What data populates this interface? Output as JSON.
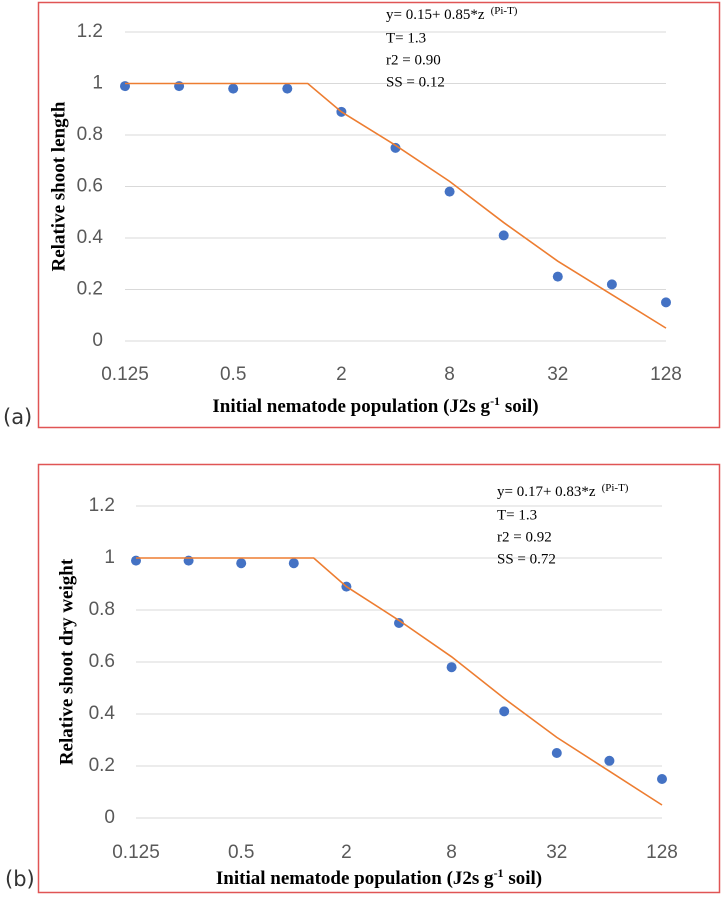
{
  "chart_data": [
    {
      "type": "scatter",
      "panel": "(a)",
      "ylabel": "Relative shoot length",
      "xlabel": [
        "Initial nematode population (J2s g",
        "-1",
        " soil)"
      ],
      "equation": [
        "y= 0.15+ 0.85*z",
        "(Pi-T)"
      ],
      "stats": [
        "T= 1.3",
        "r2 = 0.90",
        "SS = 0.12"
      ],
      "xscale": "log",
      "xlim": [
        0.125,
        128
      ],
      "xticks": [
        0.125,
        0.5,
        2,
        8,
        32,
        128
      ],
      "ylim": [
        0,
        1.2
      ],
      "yticks": [
        0,
        0.2,
        0.4,
        0.6,
        0.8,
        1,
        1.2
      ],
      "grid": true,
      "series": [
        {
          "style": "markers",
          "color": "#4472c4",
          "x": [
            0.125,
            0.25,
            0.5,
            1,
            2,
            4,
            8,
            16,
            32,
            64,
            128
          ],
          "values": [
            0.99,
            0.99,
            0.98,
            0.98,
            0.89,
            0.75,
            0.58,
            0.41,
            0.25,
            0.22,
            0.15
          ]
        },
        {
          "style": "line",
          "color": "#ed7d31",
          "x": [
            0.125,
            1.3,
            2,
            4,
            8,
            16,
            32,
            64,
            128
          ],
          "values": [
            1,
            1,
            0.89,
            0.76,
            0.62,
            0.46,
            0.31,
            0.18,
            0.05
          ]
        }
      ]
    },
    {
      "type": "scatter",
      "panel": "(b)",
      "ylabel": "Relative shoot dry weight",
      "xlabel": [
        "Initial nematode population (J2s g",
        "-1",
        " soil)"
      ],
      "equation": [
        "y= 0.17+ 0.83*z",
        "(Pi-T)"
      ],
      "stats": [
        "T= 1.3",
        "r2 = 0.92",
        "SS = 0.72"
      ],
      "xscale": "log",
      "xlim": [
        0.125,
        128
      ],
      "xticks": [
        0.125,
        0.5,
        2,
        8,
        32,
        128
      ],
      "ylim": [
        0,
        1.2
      ],
      "yticks": [
        0,
        0.2,
        0.4,
        0.6,
        0.8,
        1,
        1.2
      ],
      "grid": true,
      "series": [
        {
          "style": "markers",
          "color": "#4472c4",
          "x": [
            0.125,
            0.25,
            0.5,
            1,
            2,
            4,
            8,
            16,
            32,
            64,
            128
          ],
          "values": [
            0.99,
            0.99,
            0.98,
            0.98,
            0.89,
            0.75,
            0.58,
            0.41,
            0.25,
            0.22,
            0.15
          ]
        },
        {
          "style": "line",
          "color": "#ed7d31",
          "x": [
            0.125,
            1.3,
            2,
            4,
            8,
            16,
            32,
            64,
            128
          ],
          "values": [
            1,
            1,
            0.89,
            0.76,
            0.62,
            0.46,
            0.31,
            0.18,
            0.05
          ]
        }
      ]
    }
  ]
}
